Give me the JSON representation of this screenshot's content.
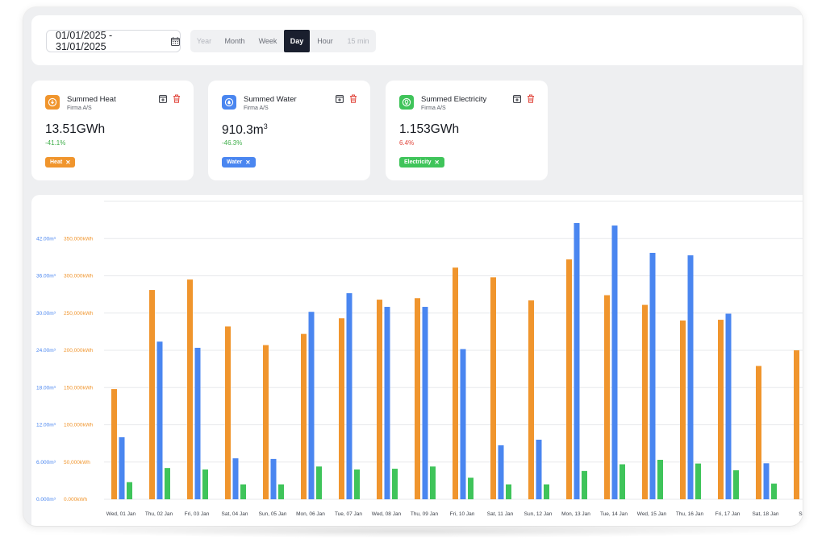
{
  "toolbar": {
    "date_range": "01/01/2025 - 31/01/2025",
    "granularity": [
      {
        "label": "Year",
        "state": "muted"
      },
      {
        "label": "Month",
        "state": "normal"
      },
      {
        "label": "Week",
        "state": "normal"
      },
      {
        "label": "Day",
        "state": "active"
      },
      {
        "label": "Hour",
        "state": "normal"
      },
      {
        "label": "15 min",
        "state": "muted"
      }
    ]
  },
  "cards": [
    {
      "title": "Summed Heat",
      "subtitle": "Firma A/S",
      "value": "13.51GWh",
      "value_sup": "",
      "change": "-41.1%",
      "change_color": "#3fae4a",
      "chip": "Heat",
      "color": "#f0952d",
      "icon": "heat-icon"
    },
    {
      "title": "Summed Water",
      "subtitle": "Firma A/S",
      "value": "910.3m",
      "value_sup": "3",
      "change": "-46.3%",
      "change_color": "#3fae4a",
      "chip": "Water",
      "color": "#4a86f0",
      "icon": "water-drop-icon"
    },
    {
      "title": "Summed Electricity",
      "subtitle": "Firma A/S",
      "value": "1.153GWh",
      "value_sup": "",
      "change": "6.4%",
      "change_color": "#e0443a",
      "chip": "Electricity",
      "color": "#3fc45a",
      "icon": "electricity-bulb-icon"
    }
  ],
  "colors": {
    "heat": "#f0952d",
    "water": "#4a86f0",
    "electricity": "#3fc45a",
    "left_axis": "#4a86f0",
    "right_axis": "#f0952d"
  },
  "chart_data": {
    "type": "bar",
    "categories": [
      "Wed, 01 Jan",
      "Thu, 02 Jan",
      "Fri, 03 Jan",
      "Sat, 04 Jan",
      "Sun, 05 Jan",
      "Mon, 06 Jan",
      "Tue, 07 Jan",
      "Wed, 08 Jan",
      "Thu, 09 Jan",
      "Fri, 10 Jan",
      "Sat, 11 Jan",
      "Sun, 12 Jan",
      "Mon, 13 Jan",
      "Tue, 14 Jan",
      "Wed, 15 Jan",
      "Thu, 16 Jan",
      "Fri, 17 Jan",
      "Sat, 18 Jan",
      "Sun"
    ],
    "series": [
      {
        "name": "Heat",
        "axis": "kWh",
        "values": [
          148000,
          281000,
          295000,
          232000,
          207000,
          222000,
          243000,
          268000,
          270000,
          311000,
          298000,
          267000,
          322000,
          274000,
          261000,
          240000,
          241000,
          179000,
          200000
        ]
      },
      {
        "name": "Water",
        "axis": "m3",
        "values": [
          10.0,
          25.4,
          24.4,
          6.6,
          6.5,
          30.2,
          33.2,
          31.0,
          31.0,
          24.2,
          8.7,
          9.6,
          44.5,
          44.1,
          39.7,
          39.3,
          29.9,
          5.8,
          null
        ]
      },
      {
        "name": "Electricity",
        "axis": "kWh",
        "values": [
          23000,
          42000,
          40000,
          20000,
          20000,
          44000,
          40000,
          41000,
          44000,
          29000,
          20000,
          20000,
          38000,
          47000,
          53000,
          48000,
          39000,
          21000,
          null
        ]
      }
    ],
    "left_axis": {
      "unit": "m³",
      "ticks": [
        "0.000m³",
        "6.000m³",
        "12.00m³",
        "18.00m³",
        "24.00m³",
        "30.00m³",
        "36.00m³",
        "42.00m³"
      ],
      "range": [
        0,
        48
      ]
    },
    "right_axis": {
      "unit": "kWh",
      "ticks": [
        "0.000kWh",
        "50,000kWh",
        "100,000kWh",
        "150,000kWh",
        "200,000kWh",
        "250,000kWh",
        "300,000kWh",
        "350,000kWh"
      ],
      "range": [
        0,
        400000
      ]
    },
    "grid": true
  }
}
